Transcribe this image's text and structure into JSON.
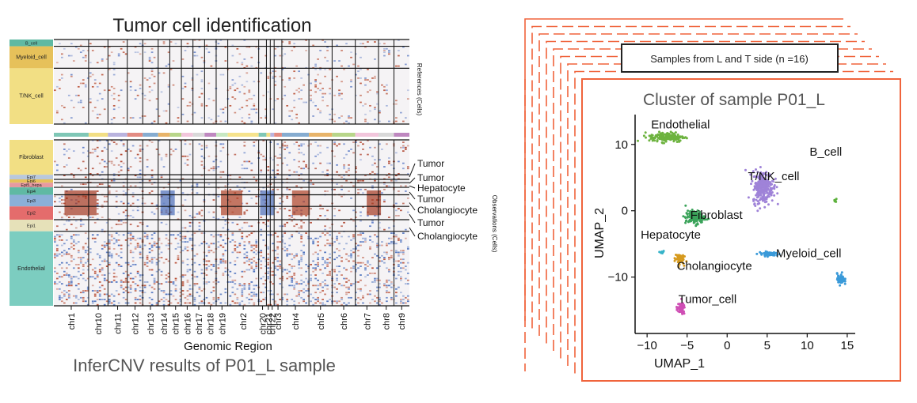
{
  "left_panel": {
    "title": "Tumor cell identification",
    "caption": "InferCNV results of P01_L sample",
    "xlabel": "Genomic Region",
    "references_label": "References (Cells)",
    "observations_label": "Observations (Cells)",
    "reference_groups": [
      {
        "label": "B_cell",
        "color": "#5fb9a3",
        "frac": 0.08
      },
      {
        "label": "Myeloid_cell",
        "color": "#e6c15a",
        "frac": 0.26
      },
      {
        "label": "T/NK_cell",
        "color": "#f2df84",
        "frac": 0.66
      }
    ],
    "observation_groups": [
      {
        "label": "Fibroblast",
        "color": "#f2df84",
        "frac": 0.21
      },
      {
        "label": "Epi7",
        "color": "#b9c8dc",
        "frac": 0.028
      },
      {
        "label": "Epi6",
        "color": "#e6c15a",
        "frac": 0.02
      },
      {
        "label": "Epi5_hepa",
        "color": "#e69aa0",
        "frac": 0.028
      },
      {
        "label": "Epi4",
        "color": "#5fb9a3",
        "frac": 0.045
      },
      {
        "label": "Epi3",
        "color": "#8bb0d8",
        "frac": 0.07
      },
      {
        "label": "Epi2",
        "color": "#e46c6c",
        "frac": 0.08
      },
      {
        "label": "Epi1",
        "color": "#e6e1b9",
        "frac": 0.07
      },
      {
        "label": "Endothelial",
        "color": "#7ccdc0",
        "frac": 0.449
      }
    ],
    "annotations": [
      "Tumor",
      "Tumor",
      "Hepatocyte",
      "Tumor",
      "Cholangiocyte",
      "Tumor",
      "Cholangiocyte"
    ],
    "chromosomes": [
      "chr1",
      "chr10",
      "chr11",
      "chr12",
      "chr13",
      "chr14",
      "chr15",
      "chr16",
      "chr17",
      "chr18",
      "chr19",
      "chr2",
      "chr20",
      "chr21",
      "chr22",
      "chr3",
      "chr4",
      "chr5",
      "chr6",
      "chr7",
      "chr8",
      "chr9"
    ],
    "chromosome_colors": [
      "#7fc7b6",
      "#f2df84",
      "#b9b3de",
      "#e38c83",
      "#86acd0",
      "#e8b46a",
      "#b8d68a",
      "#f2c6dc",
      "#d9d9d9",
      "#bf88c0",
      "#c7e8c2",
      "#f6e38c",
      "#7fc7b6",
      "#f2df84",
      "#b9b3de",
      "#e38c83",
      "#86acd0",
      "#e8b46a",
      "#b8d68a",
      "#f2c6dc",
      "#d9d9d9",
      "#bf88c0"
    ]
  },
  "right_panel": {
    "stack_label": "Samples from L and T side (n =16)",
    "plot_title": "Cluster of sample P01_L",
    "frame_color": "#f0643c",
    "chart_data": {
      "type": "scatter",
      "title": "Cluster of sample P01_L",
      "xlabel": "UMAP_1",
      "ylabel": "UMAP_2",
      "xlim": [
        -11.5,
        16
      ],
      "ylim": [
        -18.5,
        14.5
      ],
      "xticks": [
        -10,
        -5,
        0,
        5,
        10,
        15
      ],
      "yticks": [
        10,
        0,
        -10
      ],
      "xtick_labels": [
        "−10",
        "−5",
        "0",
        "5",
        "10",
        "15"
      ],
      "ytick_labels": [
        "10",
        "0",
        "−10"
      ],
      "clusters": [
        {
          "name": "Endothelial",
          "color": "#6db33f",
          "center": [
            -7.5,
            11.1
          ],
          "spread": [
            2.2,
            0.75
          ],
          "n": 170,
          "label_at": [
            -9.5,
            12.4
          ]
        },
        {
          "name": "T/NK_cell",
          "color": "#9f83d8",
          "center": [
            4.5,
            3.6
          ],
          "spread": [
            1.3,
            2.4
          ],
          "n": 260,
          "label_at": [
            2.6,
            4.6
          ]
        },
        {
          "name": "B_cell",
          "color": "#5cb13c",
          "center": [
            13.5,
            1.5
          ],
          "spread": [
            0.18,
            0.2
          ],
          "n": 6,
          "label_at": [
            10.3,
            8.3
          ]
        },
        {
          "name": "Fibroblast",
          "color": "#3ba35a",
          "center": [
            -4.0,
            -1.0
          ],
          "spread": [
            1.2,
            1.0
          ],
          "n": 130,
          "label_at": [
            -4.6,
            -1.2
          ]
        },
        {
          "name": "Hepatocyte",
          "color": "#36b3c9",
          "center": [
            -8.2,
            -6.2
          ],
          "spread": [
            0.5,
            0.3
          ],
          "n": 10,
          "label_at": [
            -10.8,
            -4.2
          ]
        },
        {
          "name": "Cholangiocyte",
          "color": "#d69a1e",
          "center": [
            -6.0,
            -7.2
          ],
          "spread": [
            0.55,
            0.85
          ],
          "n": 60,
          "label_at": [
            -6.3,
            -8.9
          ]
        },
        {
          "name": "Myeloid_cell",
          "color": "#3a9ad9",
          "center": [
            5.3,
            -6.5
          ],
          "spread": [
            1.4,
            0.35
          ],
          "n": 50,
          "label_at": [
            6.1,
            -7.0
          ]
        },
        {
          "name": "Tumor_cell",
          "color": "#cf4fb5",
          "center": [
            -5.8,
            -14.8
          ],
          "spread": [
            0.55,
            0.85
          ],
          "n": 55,
          "label_at": [
            -6.1,
            -13.9
          ]
        },
        {
          "name": "",
          "color": "#3a9ad9",
          "center": [
            14.2,
            -10.3
          ],
          "spread": [
            0.45,
            0.85
          ],
          "n": 65,
          "label_at": null
        }
      ]
    }
  }
}
